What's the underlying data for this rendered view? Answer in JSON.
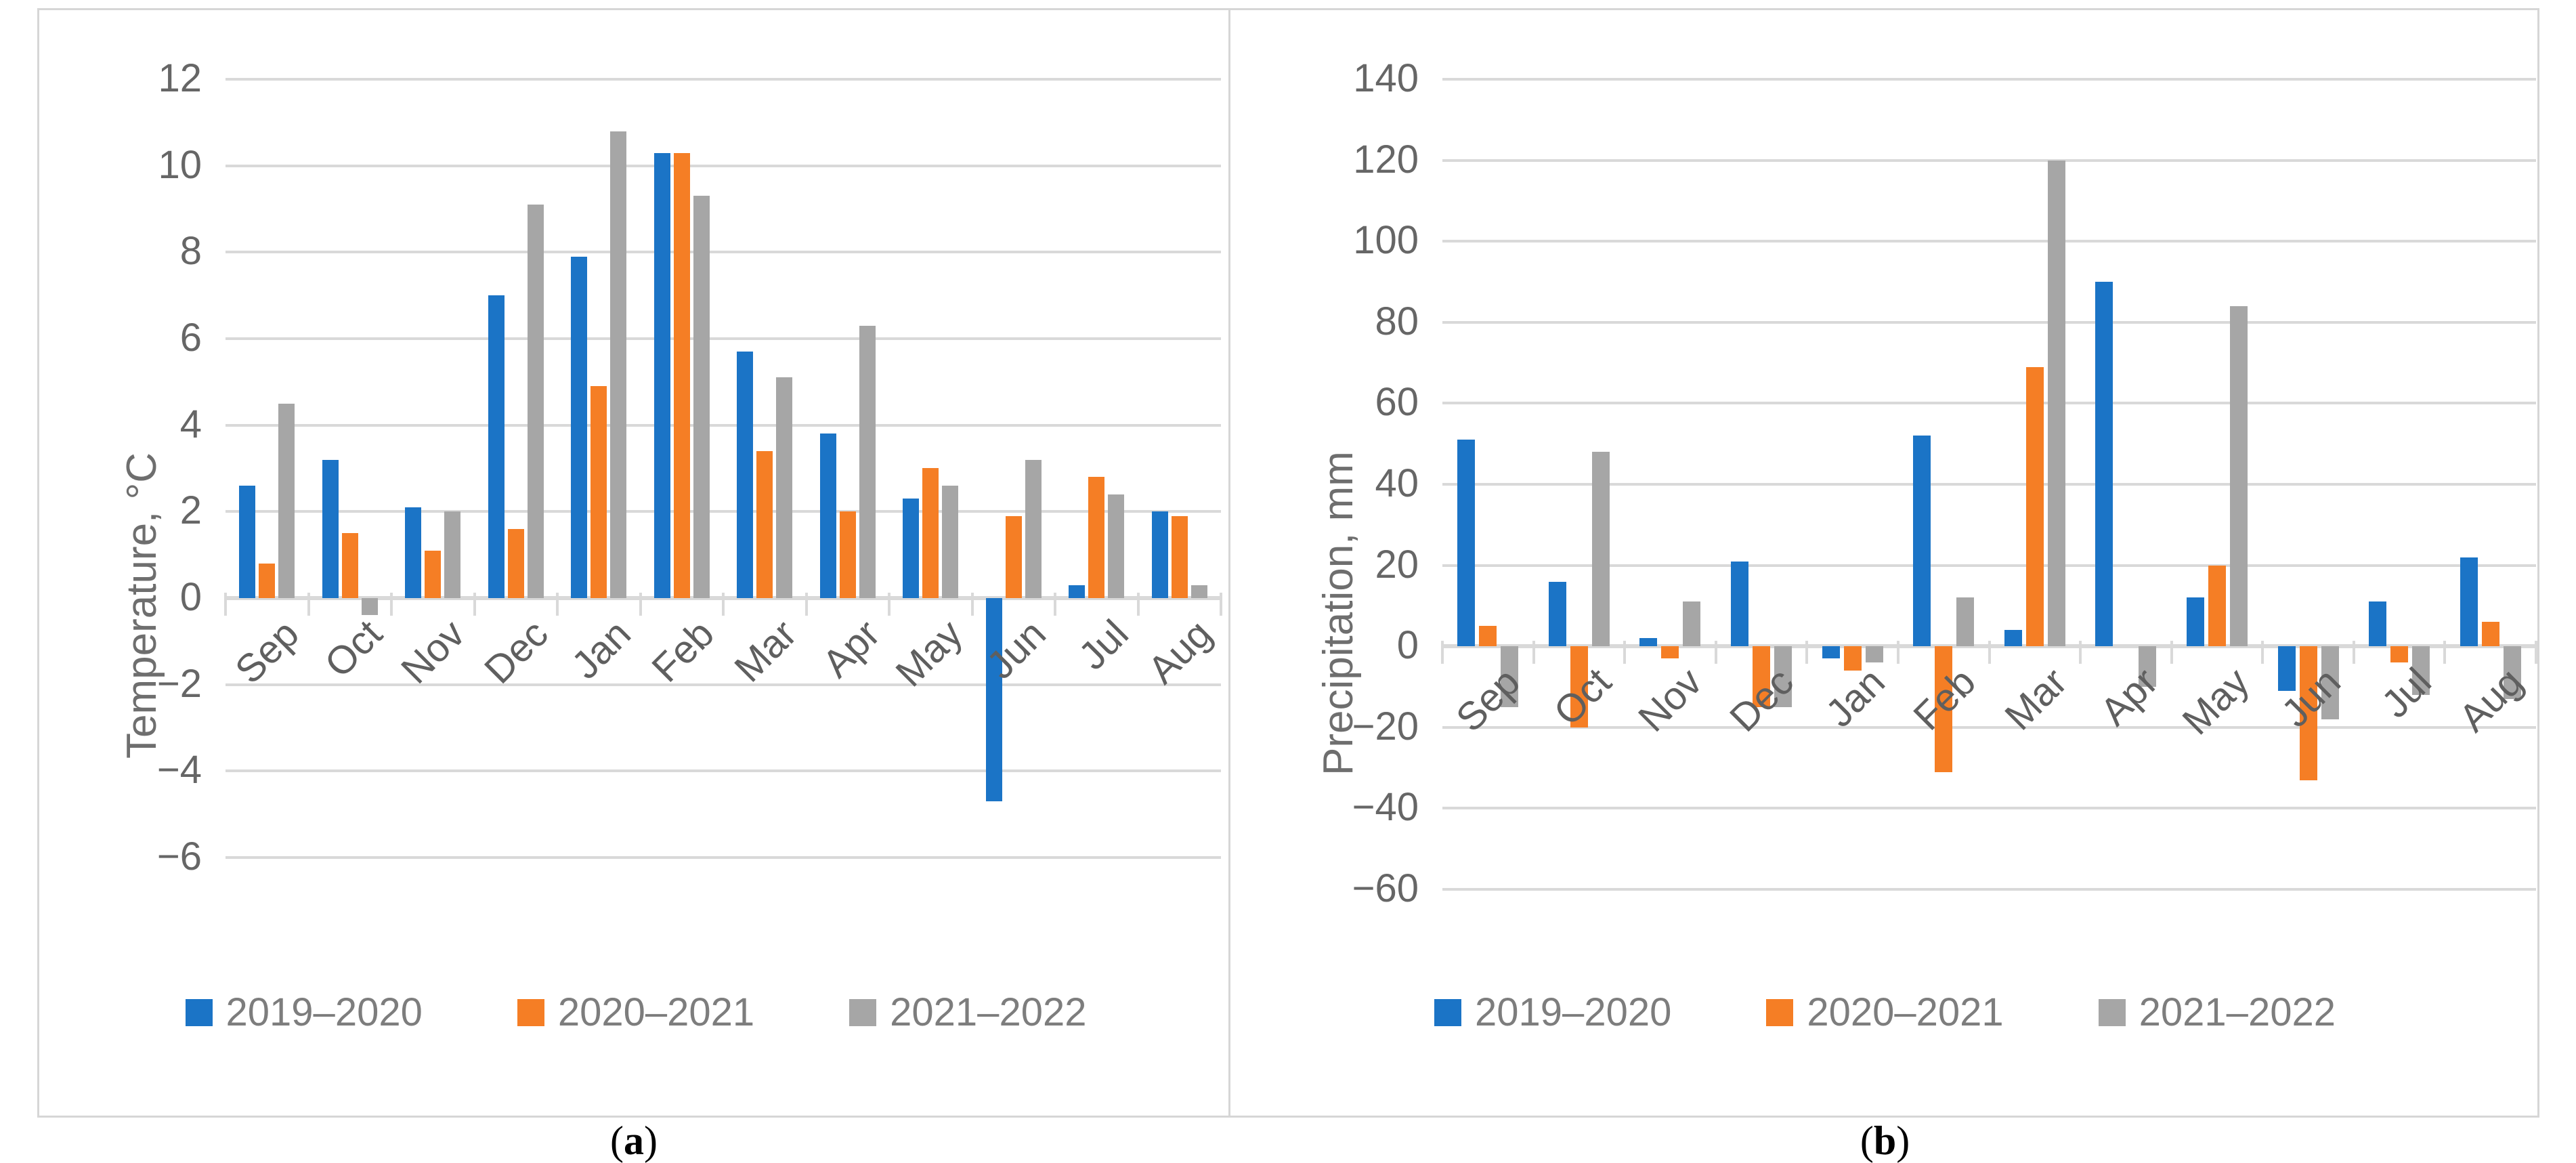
{
  "colors": {
    "series_2019_2020": "#1b74c6",
    "series_2020_2021": "#f57e25",
    "series_2021_2022": "#a6a6a6",
    "gridline": "#d9d9d9",
    "axis_text": "#666666",
    "legend_text": "#7d7d7d",
    "panel_border": "#d6d6d6"
  },
  "chart_data": [
    {
      "type": "bar",
      "caption_open": "(",
      "caption_letter": "a",
      "caption_close": ")",
      "title": "",
      "xlabel": "",
      "ylabel": "Temperature, °C",
      "ylim": [
        -6,
        12
      ],
      "ytick_step": 2,
      "yticks": [
        "12",
        "10",
        "8",
        "6",
        "4",
        "2",
        "0",
        "−2",
        "−4",
        "−6"
      ],
      "grid": true,
      "legend_position": "bottom",
      "categories": [
        "Sep",
        "Oct",
        "Nov",
        "Dec",
        "Jan",
        "Feb",
        "Mar",
        "Apr",
        "May",
        "Jun",
        "Jul",
        "Aug"
      ],
      "series": [
        {
          "name": "2019–2020",
          "color": "#1b74c6",
          "values": [
            2.6,
            3.2,
            2.1,
            7.0,
            7.9,
            10.3,
            5.7,
            3.8,
            2.3,
            -4.7,
            0.3,
            2.0
          ]
        },
        {
          "name": "2020–2021",
          "color": "#f57e25",
          "values": [
            0.8,
            1.5,
            1.1,
            1.6,
            4.9,
            10.3,
            3.4,
            2.0,
            3.0,
            1.9,
            2.8,
            1.9
          ]
        },
        {
          "name": "2021–2022",
          "color": "#a6a6a6",
          "values": [
            4.5,
            -0.4,
            2.0,
            9.1,
            10.8,
            9.3,
            5.1,
            6.3,
            2.6,
            3.2,
            2.4,
            0.3
          ]
        }
      ]
    },
    {
      "type": "bar",
      "caption_open": "(",
      "caption_letter": "b",
      "caption_close": ")",
      "title": "",
      "xlabel": "",
      "ylabel": "Precipitation, mm",
      "ylim": [
        -60,
        140
      ],
      "ytick_step": 20,
      "yticks": [
        "140",
        "120",
        "100",
        "80",
        "60",
        "40",
        "20",
        "0",
        "−20",
        "−40",
        "−60"
      ],
      "grid": true,
      "legend_position": "bottom",
      "categories": [
        "Sep",
        "Oct",
        "Nov",
        "Dec",
        "Jan",
        "Feb",
        "Mar",
        "Apr",
        "May",
        "Jun",
        "Jul",
        "Aug"
      ],
      "series": [
        {
          "name": "2019–2020",
          "color": "#1b74c6",
          "values": [
            51,
            16,
            2,
            21,
            -3,
            52,
            4,
            90,
            12,
            -11,
            11,
            22
          ]
        },
        {
          "name": "2020–2021",
          "color": "#f57e25",
          "values": [
            5,
            -20,
            -3,
            -15,
            -6,
            -31,
            69,
            0,
            20,
            -33,
            -4,
            6
          ]
        },
        {
          "name": "2021–2022",
          "color": "#a6a6a6",
          "values": [
            -15,
            48,
            11,
            -15,
            -4,
            12,
            120,
            -10,
            84,
            -18,
            -12,
            -13
          ]
        }
      ]
    }
  ]
}
